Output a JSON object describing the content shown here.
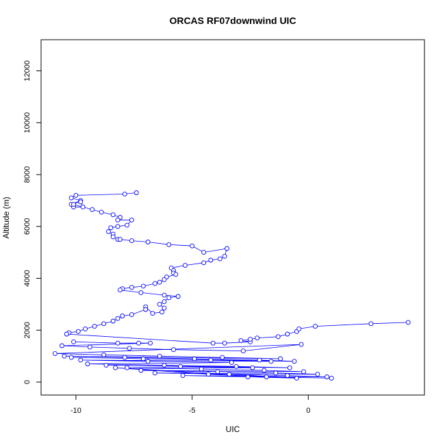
{
  "chart_data": {
    "type": "line",
    "title": "ORCAS RF07downwind UIC",
    "xlabel": "UIC",
    "ylabel": "Altitude (m)",
    "xlim": [
      -11.5,
      5
    ],
    "ylim": [
      -500,
      13200
    ],
    "xticks": [
      -10,
      -5,
      0
    ],
    "xtick_labels": [
      "-10",
      "-5",
      "0"
    ],
    "yticks": [
      0,
      2000,
      4000,
      6000,
      8000,
      10000,
      12000
    ],
    "ytick_labels": [
      "0",
      "2000",
      "4000",
      "6000",
      "8000",
      "10000",
      "12000"
    ],
    "grid": false,
    "marker": "open-circle",
    "line_color": "#0000ff",
    "series": [
      {
        "x": [
          -7.4,
          -7.9,
          -10.0,
          -10.2,
          -9.8,
          -10.2,
          -9.8,
          -9.7,
          -10.1,
          -10.1,
          -9.3,
          -8.9,
          -8.4,
          -8.1,
          -8.2,
          -7.6,
          -7.8,
          -8.2,
          -8.5,
          -8.6,
          -8.4,
          -8.4,
          -8.2,
          -8.1,
          -7.6,
          -6.9,
          -6.0,
          -5.0,
          -4.5,
          -3.5,
          -3.6,
          -3.8,
          -4.2,
          -4.5,
          -5.3,
          -5.9,
          -5.8,
          -5.8,
          -5.7,
          -6.1,
          -6.2,
          -6.4,
          -6.6,
          -7.1,
          -7.6,
          -8.0,
          -8.1,
          -7.2,
          -6.2,
          -5.6,
          -6.0,
          -6.2,
          -6.4,
          -6.2,
          -6.3,
          -6.7,
          -7.0,
          -7.0,
          -7.6,
          -8.0,
          -8.2,
          -8.4,
          -8.8,
          -9.2,
          -9.6,
          -9.9,
          -10.3,
          -10.4,
          -4.1,
          -3.6,
          -2.5,
          -2.9,
          -2.5,
          -2.2,
          -1.3,
          -0.9,
          -0.5,
          -0.4,
          0.3,
          2.7,
          4.3
        ],
        "y": [
          7300,
          7250,
          7200,
          7100,
          7000,
          6850,
          6950,
          6750,
          6750,
          6850,
          6650,
          6550,
          6450,
          6350,
          6250,
          6250,
          6050,
          6000,
          5950,
          5800,
          5700,
          5600,
          5500,
          5500,
          5450,
          5400,
          5300,
          5250,
          5000,
          5150,
          4850,
          4750,
          4700,
          4600,
          4500,
          4400,
          4300,
          4200,
          4150,
          4050,
          3950,
          3850,
          3800,
          3700,
          3650,
          3600,
          3550,
          3450,
          3350,
          3300,
          3250,
          3100,
          3000,
          2850,
          2700,
          2650,
          2900,
          2800,
          2600,
          2550,
          2450,
          2350,
          2250,
          2150,
          2050,
          1950,
          1900,
          1850,
          1500,
          1500,
          1550,
          1600,
          1650,
          1700,
          1750,
          1850,
          1950,
          2050,
          2150,
          2250,
          2300
        ]
      },
      {
        "x": [
          -10.1,
          -8.2,
          -7.3,
          -6.8,
          -10.6,
          -9.4,
          -7.7,
          -5.8,
          -2.8,
          -0.3,
          -10.9,
          -8.8,
          -6.4,
          -3.7,
          -1.2,
          -10.5,
          -7.9,
          -4.9,
          -2.1,
          -0.6,
          -10.2,
          -7.1,
          -4.2,
          -1.6,
          -9.8,
          -6.9,
          -3.3,
          -9.5,
          -6.2,
          -3.1,
          -0.8,
          -8.7,
          -5.5,
          -2.4,
          -7.8,
          -4.6,
          -1.9,
          -0.2,
          -7.2,
          -3.9,
          -1.4,
          0.4,
          -6.6,
          -3.4,
          -0.9,
          0.8,
          -5.4,
          -2.6,
          -0.5,
          -8.3,
          -4.3,
          -1.8,
          1.0
        ],
        "y": [
          1550,
          1500,
          1500,
          1500,
          1400,
          1350,
          1300,
          1250,
          1200,
          1450,
          1100,
          1050,
          1000,
          950,
          900,
          1000,
          950,
          900,
          850,
          800,
          950,
          900,
          850,
          800,
          850,
          800,
          750,
          700,
          650,
          600,
          550,
          650,
          600,
          550,
          550,
          500,
          450,
          400,
          450,
          400,
          350,
          300,
          350,
          300,
          250,
          200,
          250,
          200,
          150,
          550,
          300,
          200,
          150
        ]
      }
    ]
  }
}
